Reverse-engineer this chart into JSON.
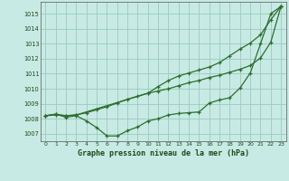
{
  "title": "Graphe pression niveau de la mer (hPa)",
  "bg_color": "#c8eae4",
  "grid_color": "#99ccbb",
  "line_color": "#2d6e2d",
  "xlim": [
    -0.5,
    23.5
  ],
  "ylim": [
    1006.5,
    1015.8
  ],
  "yticks": [
    1007,
    1008,
    1009,
    1010,
    1011,
    1012,
    1013,
    1014,
    1015
  ],
  "xticks": [
    0,
    1,
    2,
    3,
    4,
    5,
    6,
    7,
    8,
    9,
    10,
    11,
    12,
    13,
    14,
    15,
    16,
    17,
    18,
    19,
    20,
    21,
    22,
    23
  ],
  "line1_x": [
    0,
    1,
    2,
    3,
    4,
    5,
    6,
    7,
    8,
    9,
    10,
    11,
    12,
    13,
    14,
    15,
    16,
    17,
    18,
    19,
    20,
    21,
    22,
    23
  ],
  "line1_y": [
    1008.2,
    1008.3,
    1008.1,
    1008.2,
    1007.85,
    1007.4,
    1006.85,
    1006.85,
    1007.2,
    1007.45,
    1007.85,
    1008.0,
    1008.25,
    1008.35,
    1008.4,
    1008.45,
    1009.05,
    1009.25,
    1009.4,
    1010.05,
    1011.05,
    1013.0,
    1015.0,
    1015.5
  ],
  "line2_x": [
    0,
    1,
    2,
    3,
    10,
    11,
    12,
    13,
    14,
    15,
    16,
    17,
    18,
    19,
    20,
    21,
    22,
    23
  ],
  "line2_y": [
    1008.2,
    1008.3,
    1008.2,
    1008.25,
    1009.7,
    1010.15,
    1010.55,
    1010.85,
    1011.05,
    1011.25,
    1011.45,
    1011.75,
    1012.2,
    1012.65,
    1013.05,
    1013.6,
    1014.6,
    1015.5
  ],
  "line3_x": [
    0,
    1,
    2,
    3,
    4,
    5,
    6,
    7,
    8,
    9,
    10,
    11,
    12,
    13,
    14,
    15,
    16,
    17,
    18,
    19,
    20,
    21,
    22,
    23
  ],
  "line3_y": [
    1008.2,
    1008.25,
    1008.2,
    1008.25,
    1008.4,
    1008.6,
    1008.8,
    1009.05,
    1009.3,
    1009.5,
    1009.7,
    1009.85,
    1010.0,
    1010.2,
    1010.4,
    1010.55,
    1010.75,
    1010.9,
    1011.1,
    1011.3,
    1011.55,
    1012.05,
    1013.1,
    1015.5
  ]
}
